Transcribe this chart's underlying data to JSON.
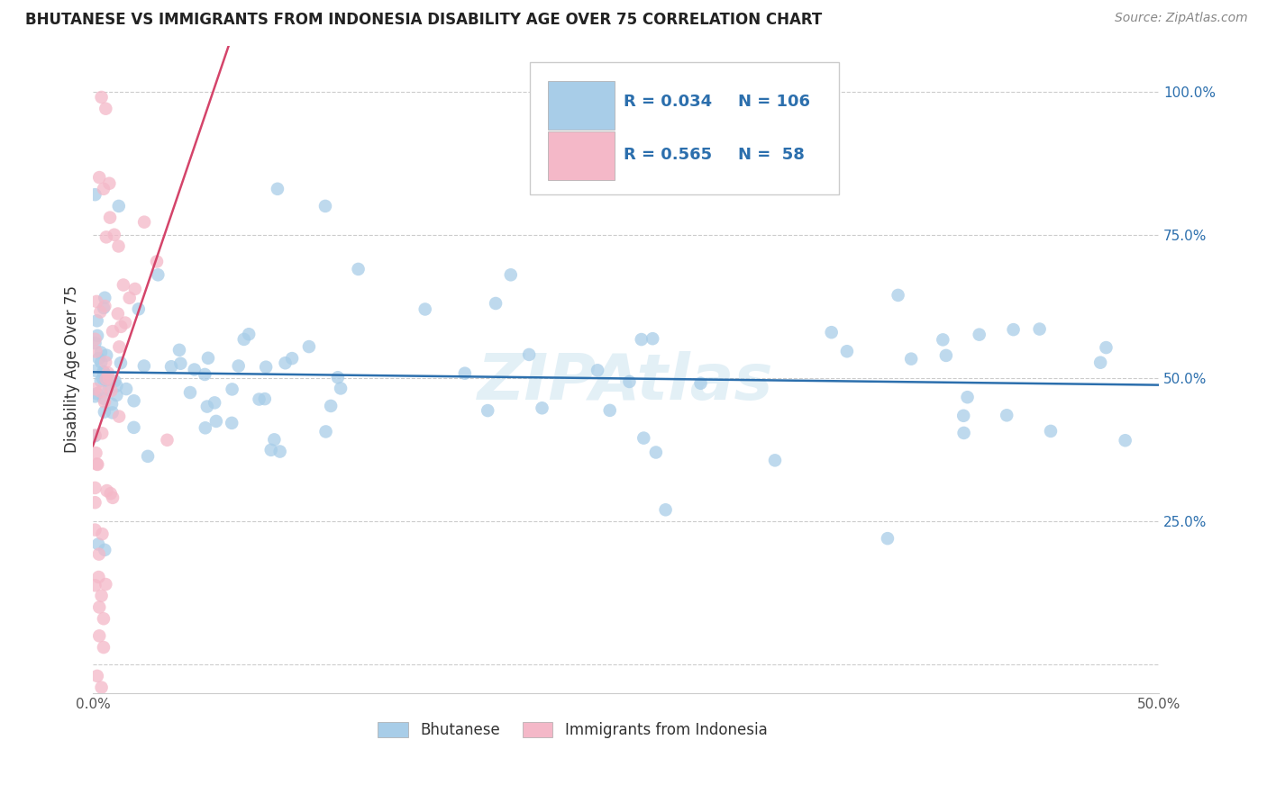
{
  "title": "BHUTANESE VS IMMIGRANTS FROM INDONESIA DISABILITY AGE OVER 75 CORRELATION CHART",
  "source": "Source: ZipAtlas.com",
  "ylabel": "Disability Age Over 75",
  "xlim": [
    0.0,
    0.5
  ],
  "ylim": [
    -0.05,
    1.08
  ],
  "ytick_positions": [
    0.0,
    0.25,
    0.5,
    0.75,
    1.0
  ],
  "ytick_labels": [
    "",
    "25.0%",
    "50.0%",
    "75.0%",
    "100.0%"
  ],
  "xtick_vals": [
    0.0,
    0.05,
    0.1,
    0.15,
    0.2,
    0.25,
    0.3,
    0.35,
    0.4,
    0.45,
    0.5
  ],
  "xtick_labels": [
    "0.0%",
    "",
    "",
    "",
    "",
    "",
    "",
    "",
    "",
    "",
    "50.0%"
  ],
  "blue_R": 0.034,
  "blue_N": 106,
  "pink_R": 0.565,
  "pink_N": 58,
  "blue_color": "#a8cde8",
  "pink_color": "#f4b8c8",
  "blue_line_color": "#2c6fad",
  "pink_line_color": "#d4446a",
  "legend_label_blue": "Bhutanese",
  "legend_label_pink": "Immigrants from Indonesia",
  "watermark": "ZIPAtlas"
}
